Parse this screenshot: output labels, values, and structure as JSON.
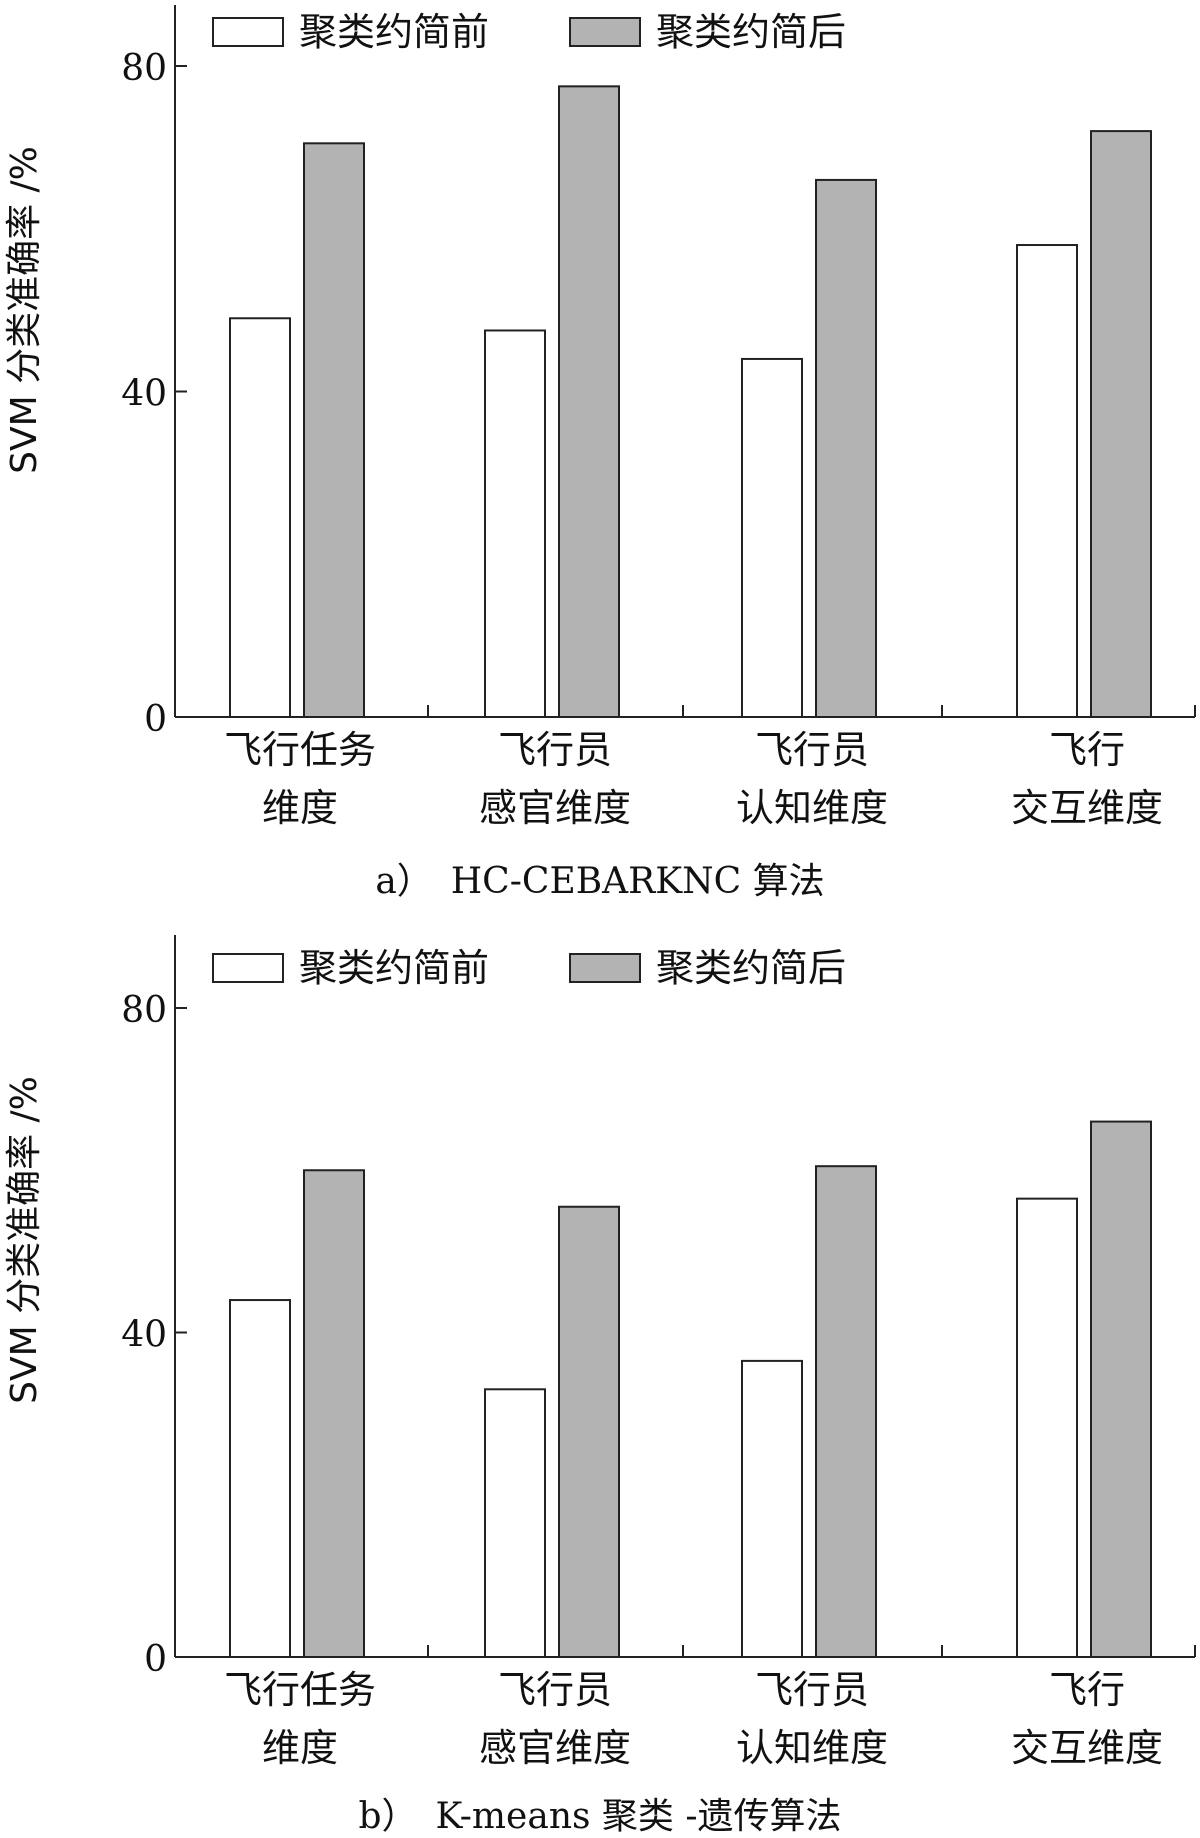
{
  "chart_data": [
    {
      "type": "bar",
      "caption": "a）　HC-CEBARKNC 算法",
      "ylabel": "SVM 分类准确率 /%",
      "xlabel": "",
      "ylim": [
        0,
        88
      ],
      "yticks": [
        "0",
        "40",
        "80"
      ],
      "legend_position": "top",
      "categories": [
        [
          "飞行任务",
          "维度"
        ],
        [
          "飞行员",
          "感官维度"
        ],
        [
          "飞行员",
          "认知维度"
        ],
        [
          "飞行",
          "交互维度"
        ]
      ],
      "series": [
        {
          "name": "聚类约简前",
          "color": "#ffffff",
          "values": [
            49,
            47.5,
            44,
            58
          ]
        },
        {
          "name": "聚类约简后",
          "color": "#b3b3b3",
          "values": [
            70.5,
            77.5,
            66,
            72
          ]
        }
      ]
    },
    {
      "type": "bar",
      "caption": "b）　K-means 聚类 -遗传算法",
      "ylabel": "SVM 分类准确率 /%",
      "xlabel": "",
      "ylim": [
        0,
        88
      ],
      "yticks": [
        "0",
        "40",
        "80"
      ],
      "legend_position": "top",
      "categories": [
        [
          "飞行任务",
          "维度"
        ],
        [
          "飞行员",
          "感官维度"
        ],
        [
          "飞行员",
          "认知维度"
        ],
        [
          "飞行",
          "交互维度"
        ]
      ],
      "series": [
        {
          "name": "聚类约简前",
          "color": "#ffffff",
          "values": [
            44,
            33,
            36.5,
            56.5
          ]
        },
        {
          "name": "聚类约简后",
          "color": "#b3b3b3",
          "values": [
            60,
            55.5,
            60.5,
            66
          ]
        }
      ]
    }
  ]
}
